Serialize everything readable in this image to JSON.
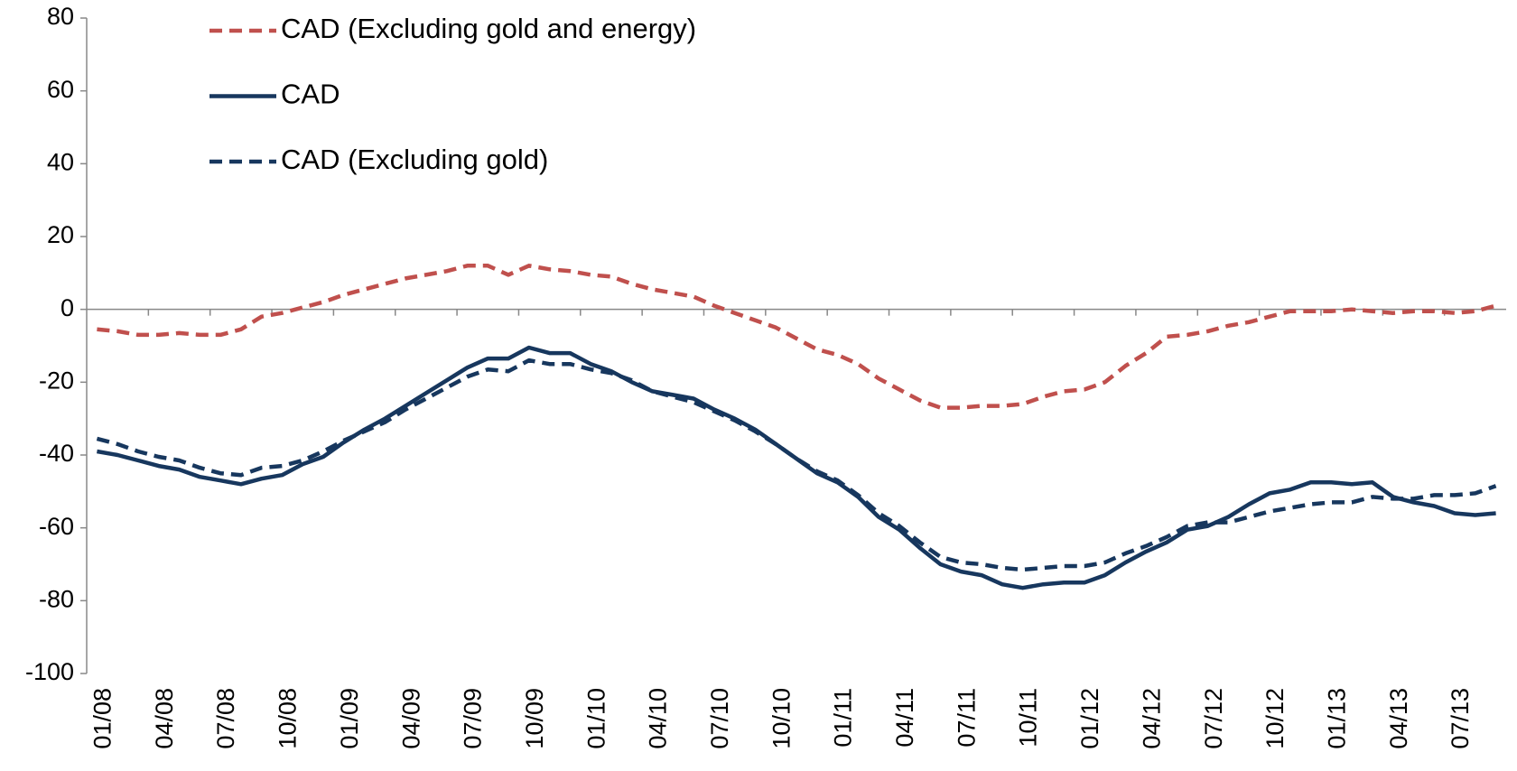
{
  "chart_data": {
    "type": "line",
    "categories": [
      "01/08",
      null,
      null,
      "04/08",
      null,
      null,
      "07/08",
      null,
      null,
      "10/08",
      null,
      null,
      "01/09",
      null,
      null,
      "04/09",
      null,
      null,
      "07/09",
      null,
      null,
      "10/09",
      null,
      null,
      "01/10",
      null,
      null,
      "04/10",
      null,
      null,
      "07/10",
      null,
      null,
      "10/10",
      null,
      null,
      "01/11",
      null,
      null,
      "04/11",
      null,
      null,
      "07/11",
      null,
      null,
      "10/11",
      null,
      null,
      "01/12",
      null,
      null,
      "04/12",
      null,
      null,
      "07/12",
      null,
      null,
      "10/12",
      null,
      null,
      "01/13",
      null,
      null,
      "04/13",
      null,
      null,
      "07/13",
      null,
      null
    ],
    "series": [
      {
        "name": "CAD (Excluding gold and energy)",
        "color": "#c0504d",
        "dashed": true,
        "values": [
          -5.5,
          -6,
          -7,
          -7,
          -6.5,
          -7,
          -7,
          -5.5,
          -2,
          -1,
          0.5,
          2,
          4,
          5.5,
          7,
          8.5,
          9.5,
          10.5,
          12,
          12,
          9.5,
          12,
          11,
          10.5,
          9.5,
          9,
          7,
          5.5,
          4.5,
          3.5,
          1,
          -1,
          -3,
          -5,
          -8,
          -11,
          -12.5,
          -15,
          -19,
          -22,
          -25,
          -27,
          -27,
          -26.5,
          -26.5,
          -26,
          -24,
          -22.5,
          -22,
          -20,
          -15.5,
          -12,
          -7.5,
          -7,
          -6,
          -4.5,
          -3.5,
          -2,
          -0.5,
          -0.5,
          -0.5,
          0,
          -0.5,
          -1,
          -0.5,
          -0.5,
          -1,
          -0.5,
          1
        ]
      },
      {
        "name": "CAD",
        "color": "#17375e",
        "dashed": false,
        "values": [
          -39,
          -40,
          -41.5,
          -43,
          -44,
          -46,
          -47,
          -48,
          -46.5,
          -45.5,
          -42.5,
          -40.5,
          -36.5,
          -33,
          -30,
          -26.5,
          -23,
          -19.5,
          -16,
          -13.5,
          -13.5,
          -10.5,
          -12,
          -12,
          -15,
          -17,
          -20,
          -22.5,
          -23.5,
          -24.5,
          -27.5,
          -30,
          -33,
          -37,
          -41,
          -45,
          -47.5,
          -51.5,
          -57,
          -60.5,
          -65.5,
          -70,
          -72,
          -73,
          -75.5,
          -76.5,
          -75.5,
          -75,
          -75,
          -73,
          -69.5,
          -66.5,
          -64,
          -60.5,
          -59.5,
          -57,
          -53.5,
          -50.5,
          -49.5,
          -47.5,
          -47.5,
          -48,
          -47.5,
          -51.5,
          -53,
          -54,
          -56,
          -56.5,
          -56
        ]
      },
      {
        "name": "CAD (Excluding gold)",
        "color": "#17375e",
        "dashed": true,
        "values": [
          -35.5,
          -37,
          -39,
          -40.5,
          -41.5,
          -43.5,
          -45,
          -45.5,
          -43.5,
          -43,
          -41.5,
          -39,
          -36,
          -33.5,
          -31,
          -27.5,
          -24.5,
          -21.5,
          -18.5,
          -16.5,
          -17,
          -14,
          -15,
          -15,
          -16.5,
          -17.5,
          -19.5,
          -22.5,
          -24,
          -25.5,
          -28,
          -30.5,
          -33.5,
          -37,
          -41,
          -44.5,
          -47,
          -51,
          -56,
          -59.5,
          -64,
          -68,
          -69.5,
          -70,
          -71,
          -71.5,
          -71,
          -70.5,
          -70.5,
          -69.5,
          -67,
          -65,
          -62.5,
          -59.5,
          -58.5,
          -58.5,
          -57,
          -55.5,
          -54.5,
          -53.5,
          -53,
          -53,
          -51.5,
          -52,
          -52,
          -51,
          -51,
          -50.5,
          -48.5
        ]
      }
    ],
    "ylim": [
      -100,
      80
    ],
    "yticks": [
      -100,
      -80,
      -60,
      -40,
      -20,
      0,
      20,
      40,
      60,
      80
    ],
    "grid": false,
    "legend": "top-left"
  }
}
